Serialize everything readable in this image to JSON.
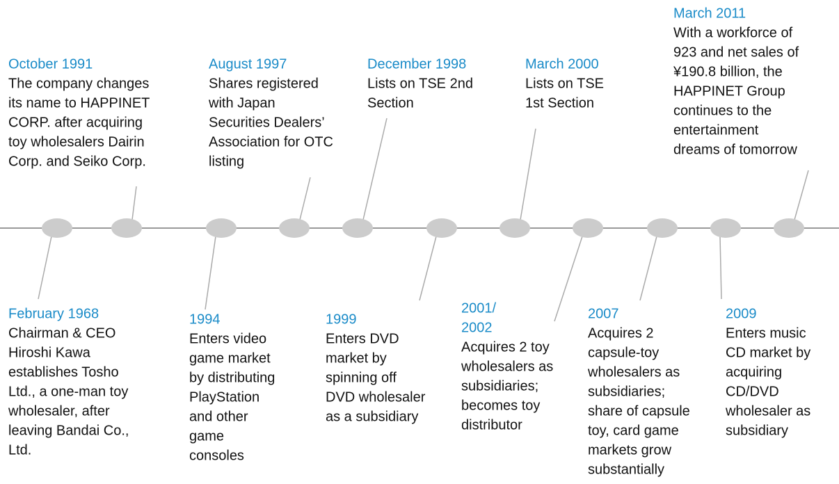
{
  "events": [
    {
      "date": [
        "February 1968"
      ],
      "lines": [
        "Chairman & CEO",
        "Hiroshi Kawa",
        "establishes Tosho",
        "Ltd., a one-man toy",
        "wholesaler, after",
        "leaving Bandai Co.,",
        "Ltd."
      ]
    },
    {
      "date": [
        "October 1991"
      ],
      "lines": [
        "The company changes",
        "its name to HAPPINET",
        "CORP. after acquiring",
        "toy wholesalers Dairin",
        "Corp. and Seiko Corp."
      ]
    },
    {
      "date": [
        "1994"
      ],
      "lines": [
        "Enters video",
        "game market",
        "by distributing",
        "PlayStation",
        "and other",
        "game",
        "consoles"
      ]
    },
    {
      "date": [
        "August 1997"
      ],
      "lines": [
        "Shares registered",
        "with Japan",
        "Securities Dealers’",
        "Association for OTC",
        "listing"
      ]
    },
    {
      "date": [
        "December 1998"
      ],
      "lines": [
        "Lists on TSE 2nd",
        "Section"
      ]
    },
    {
      "date": [
        "1999"
      ],
      "lines": [
        "Enters DVD",
        "market by",
        "spinning off",
        "DVD wholesaler",
        "as a subsidiary"
      ]
    },
    {
      "date": [
        "March 2000"
      ],
      "lines": [
        "Lists on TSE",
        "1st Section"
      ]
    },
    {
      "date": [
        "2001/",
        "2002"
      ],
      "lines": [
        "Acquires 2 toy",
        "wholesalers as",
        "subsidiaries;",
        "becomes toy",
        "distributor"
      ]
    },
    {
      "date": [
        "2007"
      ],
      "lines": [
        "Acquires 2",
        "capsule-toy",
        "wholesalers as",
        "subsidiaries;",
        "share of capsule",
        "toy, card game",
        "markets grow",
        "substantially"
      ]
    },
    {
      "date": [
        "2009"
      ],
      "lines": [
        "Enters music",
        "CD market by",
        "acquiring",
        "CD/DVD",
        "wholesaler as",
        "subsidiary"
      ]
    },
    {
      "date": [
        "March 2011"
      ],
      "lines": [
        "With a workforce of",
        "923 and net sales of",
        "¥190.8 billion, the",
        "HAPPINET Group",
        "continues to the",
        "entertainment",
        "dreams of tomorrow"
      ]
    }
  ]
}
